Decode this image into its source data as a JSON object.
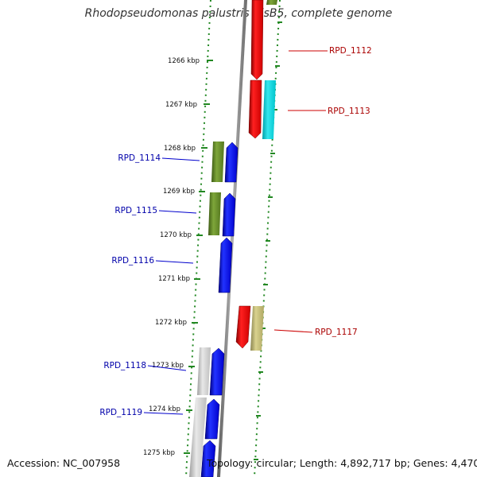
{
  "title": "Rhodopseudomonas palustris BisB5, complete genome",
  "footer": {
    "accession": "Accession: NC_007958",
    "summary": "Topology: circular; Length: 4,892,717 bp; Genes: 4,470"
  },
  "colors": {
    "forward_cds": "#dd0000",
    "reverse_cds": "#0000ee",
    "label_forward": "#aa0000",
    "label_reverse": "#0000aa",
    "ticks": "#228822",
    "backbone": "#808080"
  },
  "scale_ticks": [
    "1266 kbp",
    "1267 kbp",
    "1268 kbp",
    "1269 kbp",
    "1270 kbp",
    "1271 kbp",
    "1272 kbp",
    "1273 kbp",
    "1274 kbp",
    "1275 kbp"
  ],
  "gene_labels": {
    "rpd_1112": "RPD_1112",
    "rpd_1113": "RPD_1113",
    "rpd_1114": "RPD_1114",
    "rpd_1115": "RPD_1115",
    "rpd_1116": "RPD_1116",
    "rpd_1117": "RPD_1117",
    "rpd_1118": "RPD_1118",
    "rpd_1119": "RPD_1119"
  }
}
